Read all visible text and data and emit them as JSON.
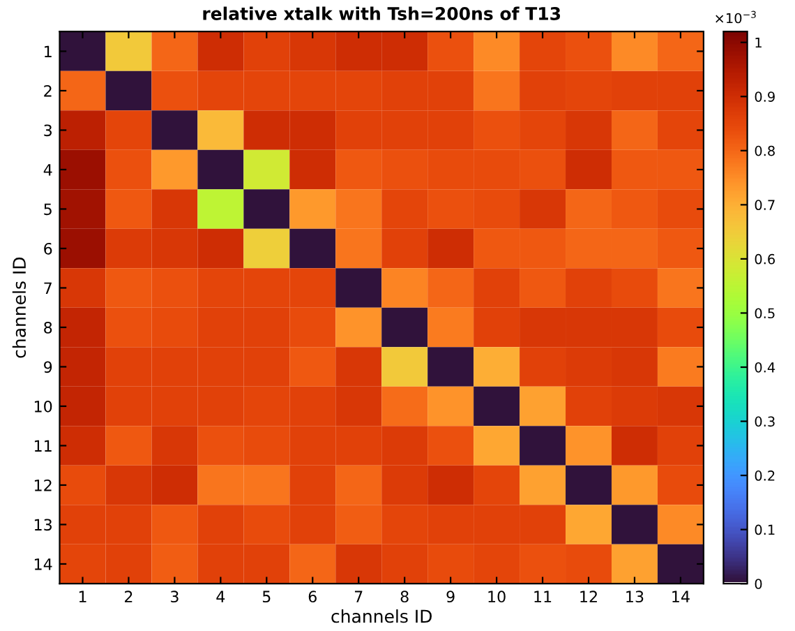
{
  "chart_data": {
    "type": "heatmap",
    "title": "relative xtalk with Tsh=200ns of T13",
    "xlabel": "channels ID",
    "ylabel": "channels ID",
    "clabel": "×10$^{−3}$",
    "categories": [
      "1",
      "2",
      "3",
      "4",
      "5",
      "6",
      "7",
      "8",
      "9",
      "10",
      "11",
      "12",
      "13",
      "14"
    ],
    "y_categories": [
      "1",
      "2",
      "3",
      "4",
      "5",
      "6",
      "7",
      "8",
      "9",
      "10",
      "11",
      "12",
      "13",
      "14"
    ],
    "cells": [
      [
        0,
        0.65,
        0.8,
        0.9,
        0.86,
        0.88,
        0.9,
        0.9,
        0.83,
        0.75,
        0.85,
        0.83,
        0.75,
        0.8
      ],
      [
        0.8,
        0,
        0.83,
        0.85,
        0.85,
        0.85,
        0.85,
        0.86,
        0.86,
        0.78,
        0.86,
        0.85,
        0.86,
        0.86
      ],
      [
        0.93,
        0.85,
        0,
        0.68,
        0.9,
        0.9,
        0.86,
        0.86,
        0.86,
        0.83,
        0.85,
        0.88,
        0.8,
        0.85
      ],
      [
        0.98,
        0.83,
        0.73,
        0,
        0.58,
        0.9,
        0.82,
        0.83,
        0.84,
        0.84,
        0.83,
        0.9,
        0.82,
        0.82
      ],
      [
        0.97,
        0.82,
        0.88,
        0.55,
        0,
        0.73,
        0.78,
        0.85,
        0.83,
        0.84,
        0.88,
        0.8,
        0.82,
        0.84
      ],
      [
        0.98,
        0.87,
        0.88,
        0.9,
        0.64,
        0,
        0.78,
        0.86,
        0.9,
        0.82,
        0.82,
        0.8,
        0.8,
        0.82
      ],
      [
        0.88,
        0.82,
        0.83,
        0.85,
        0.85,
        0.85,
        0,
        0.76,
        0.8,
        0.86,
        0.82,
        0.86,
        0.84,
        0.78
      ],
      [
        0.92,
        0.83,
        0.84,
        0.86,
        0.86,
        0.84,
        0.74,
        0,
        0.77,
        0.86,
        0.88,
        0.88,
        0.88,
        0.84
      ],
      [
        0.92,
        0.86,
        0.86,
        0.86,
        0.86,
        0.82,
        0.88,
        0.65,
        0,
        0.7,
        0.86,
        0.87,
        0.88,
        0.77
      ],
      [
        0.92,
        0.86,
        0.86,
        0.86,
        0.85,
        0.86,
        0.88,
        0.79,
        0.74,
        0,
        0.72,
        0.86,
        0.87,
        0.88
      ],
      [
        0.9,
        0.82,
        0.88,
        0.83,
        0.84,
        0.86,
        0.86,
        0.87,
        0.83,
        0.71,
        0,
        0.74,
        0.9,
        0.86
      ],
      [
        0.84,
        0.88,
        0.9,
        0.78,
        0.78,
        0.86,
        0.8,
        0.87,
        0.9,
        0.85,
        0.72,
        0,
        0.73,
        0.84
      ],
      [
        0.86,
        0.86,
        0.82,
        0.86,
        0.84,
        0.86,
        0.81,
        0.85,
        0.86,
        0.86,
        0.86,
        0.71,
        0,
        0.75
      ],
      [
        0.85,
        0.86,
        0.81,
        0.86,
        0.86,
        0.8,
        0.88,
        0.86,
        0.84,
        0.85,
        0.83,
        0.84,
        0.72,
        0
      ]
    ],
    "clim": [
      0,
      1.02
    ],
    "cticks": [
      0,
      0.1,
      0.2,
      0.3,
      0.4,
      0.5,
      0.6,
      0.7,
      0.8,
      0.9,
      1
    ]
  }
}
